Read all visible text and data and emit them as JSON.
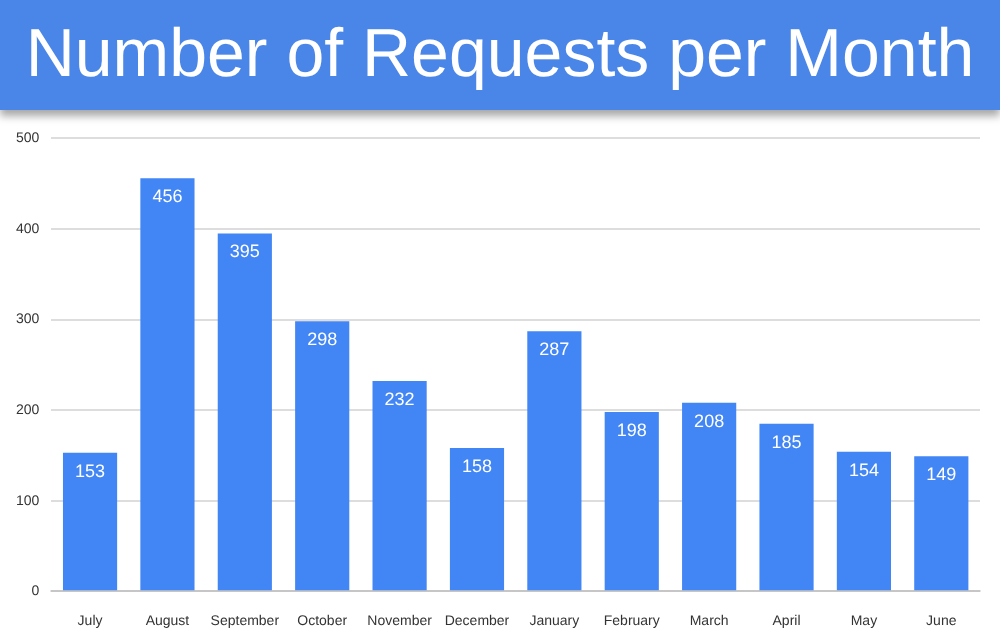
{
  "chart_data": {
    "type": "bar",
    "title": "Number of Requests per Month",
    "categories": [
      "July",
      "August",
      "September",
      "October",
      "November",
      "December",
      "January",
      "February",
      "March",
      "April",
      "May",
      "June"
    ],
    "values": [
      153,
      456,
      395,
      298,
      232,
      158,
      287,
      198,
      208,
      185,
      154,
      149
    ],
    "color": "#4285f4",
    "ylim": [
      0,
      500
    ],
    "yticks": [
      0,
      100,
      200,
      300,
      400,
      500
    ],
    "grid": "y",
    "data_labels": true,
    "legend": false
  }
}
